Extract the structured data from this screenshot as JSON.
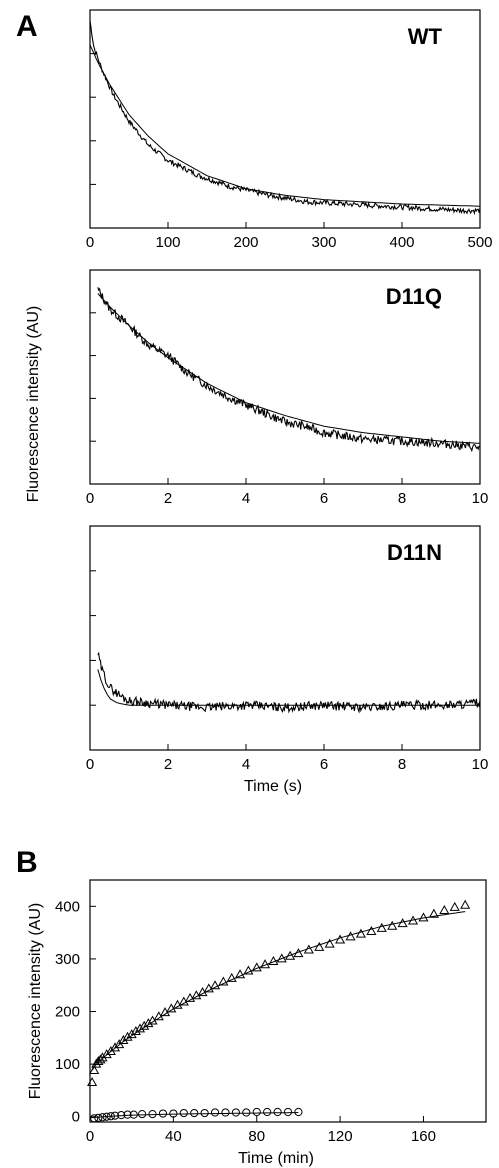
{
  "figure": {
    "panel_a_letter": "A",
    "panel_b_letter": "B",
    "shared_ylabel_a": "Fluorescence intensity  (AU)",
    "shared_xlabel_a": "Time  (s)"
  },
  "chart_data": [
    {
      "type": "line",
      "title": "WT",
      "xlabel": "",
      "ylabel": "Fluorescence intensity  (AU)",
      "xlim": [
        0,
        500
      ],
      "ylim": [
        0,
        1
      ],
      "xticks": [
        0,
        100,
        200,
        300,
        400,
        500
      ],
      "y_tick_labels_shown": false,
      "series": [
        {
          "style": "noisy trace",
          "x": [
            0,
            5,
            15,
            30,
            50,
            75,
            100,
            140,
            180,
            230,
            280,
            330,
            380,
            430,
            480,
            500
          ],
          "y": [
            0.95,
            0.83,
            0.73,
            0.61,
            0.49,
            0.38,
            0.31,
            0.24,
            0.19,
            0.15,
            0.12,
            0.11,
            0.1,
            0.09,
            0.08,
            0.08
          ]
        },
        {
          "style": "fit",
          "x": [
            0,
            10,
            25,
            50,
            75,
            100,
            150,
            200,
            250,
            300,
            350,
            400,
            450,
            500
          ],
          "y": [
            0.84,
            0.76,
            0.66,
            0.52,
            0.42,
            0.34,
            0.24,
            0.18,
            0.15,
            0.13,
            0.12,
            0.11,
            0.105,
            0.1
          ]
        }
      ]
    },
    {
      "type": "line",
      "title": "D11Q",
      "xlabel": "",
      "ylabel": "Fluorescence intensity  (AU)",
      "xlim": [
        0,
        10
      ],
      "ylim": [
        0,
        1
      ],
      "xticks": [
        0,
        2,
        4,
        6,
        8,
        10
      ],
      "y_tick_labels_shown": false,
      "series": [
        {
          "style": "noisy trace",
          "x": [
            0.2,
            0.5,
            1,
            1.5,
            2,
            2.5,
            3,
            3.5,
            4,
            4.5,
            5,
            5.5,
            6,
            7,
            8,
            9,
            10
          ],
          "y": [
            0.91,
            0.82,
            0.74,
            0.65,
            0.6,
            0.52,
            0.46,
            0.41,
            0.37,
            0.33,
            0.29,
            0.27,
            0.24,
            0.21,
            0.2,
            0.19,
            0.17
          ]
        },
        {
          "style": "fit",
          "x": [
            0.2,
            0.5,
            1,
            1.5,
            2,
            3,
            4,
            5,
            6,
            7,
            8,
            9,
            10
          ],
          "y": [
            0.89,
            0.83,
            0.74,
            0.66,
            0.59,
            0.47,
            0.38,
            0.32,
            0.27,
            0.24,
            0.22,
            0.2,
            0.19
          ]
        }
      ]
    },
    {
      "type": "line",
      "title": "D11N",
      "xlabel": "Time  (s)",
      "ylabel": "Fluorescence intensity  (AU)",
      "xlim": [
        0,
        10
      ],
      "ylim": [
        0,
        1
      ],
      "xticks": [
        0,
        2,
        4,
        6,
        8,
        10
      ],
      "y_tick_labels_shown": false,
      "series": [
        {
          "style": "noisy trace",
          "x": [
            0.2,
            0.3,
            0.5,
            0.8,
            1,
            1.5,
            2,
            3,
            4,
            5,
            6,
            7,
            8,
            9,
            10
          ],
          "y": [
            0.43,
            0.36,
            0.28,
            0.24,
            0.22,
            0.21,
            0.2,
            0.19,
            0.2,
            0.19,
            0.2,
            0.19,
            0.2,
            0.2,
            0.21
          ]
        },
        {
          "style": "fit",
          "x": [
            0.2,
            0.3,
            0.4,
            0.5,
            0.7,
            1,
            1.5,
            2,
            4,
            6,
            8,
            10
          ],
          "y": [
            0.36,
            0.3,
            0.26,
            0.23,
            0.21,
            0.2,
            0.2,
            0.2,
            0.2,
            0.2,
            0.2,
            0.2
          ]
        }
      ]
    },
    {
      "type": "scatter",
      "title": "",
      "xlabel": "Time  (min)",
      "ylabel": "Fluorescence intensity  (AU)",
      "xlim": [
        0,
        190
      ],
      "ylim": [
        -10,
        450
      ],
      "xticks": [
        0,
        40,
        80,
        120,
        160
      ],
      "yticks": [
        0,
        100,
        200,
        300,
        400
      ],
      "series": [
        {
          "marker": "triangle",
          "x": [
            1,
            2,
            3,
            4,
            5,
            6,
            8,
            10,
            12,
            14,
            16,
            18,
            20,
            22,
            24,
            26,
            28,
            30,
            33,
            36,
            39,
            42,
            45,
            48,
            51,
            54,
            57,
            60,
            64,
            68,
            72,
            76,
            80,
            84,
            88,
            92,
            96,
            100,
            105,
            110,
            115,
            120,
            125,
            130,
            135,
            140,
            145,
            150,
            155,
            160,
            165,
            170,
            175,
            180
          ],
          "y": [
            65,
            88,
            100,
            105,
            108,
            112,
            118,
            124,
            131,
            137,
            145,
            151,
            156,
            162,
            167,
            172,
            177,
            182,
            190,
            198,
            205,
            212,
            218,
            225,
            230,
            236,
            243,
            249,
            256,
            263,
            270,
            277,
            283,
            289,
            295,
            300,
            305,
            310,
            317,
            322,
            328,
            336,
            342,
            347,
            352,
            358,
            362,
            367,
            372,
            378,
            385,
            392,
            398,
            402
          ]
        },
        {
          "marker": "circle",
          "x": [
            2,
            4,
            6,
            8,
            10,
            12,
            15,
            18,
            21,
            25,
            30,
            35,
            40,
            45,
            50,
            55,
            60,
            65,
            70,
            75,
            80,
            85,
            90,
            95,
            100
          ],
          "y": [
            -3,
            -2,
            -1,
            0,
            1,
            2,
            3,
            4,
            4,
            5,
            5,
            6,
            6,
            7,
            7,
            7,
            8,
            8,
            8,
            8,
            9,
            9,
            9,
            9,
            9
          ]
        },
        {
          "style": "fit",
          "x": [
            1,
            3,
            6,
            10,
            15,
            20,
            30,
            40,
            50,
            60,
            80,
            100,
            120,
            140,
            160,
            180
          ],
          "y": [
            88,
            100,
            111,
            124,
            140,
            154,
            180,
            205,
            226,
            246,
            282,
            313,
            340,
            362,
            378,
            390
          ]
        },
        {
          "style": "fit",
          "x": [
            0,
            10,
            20,
            40,
            60,
            80,
            100
          ],
          "y": [
            -2,
            1,
            3,
            5,
            6,
            7,
            8
          ]
        }
      ]
    }
  ]
}
